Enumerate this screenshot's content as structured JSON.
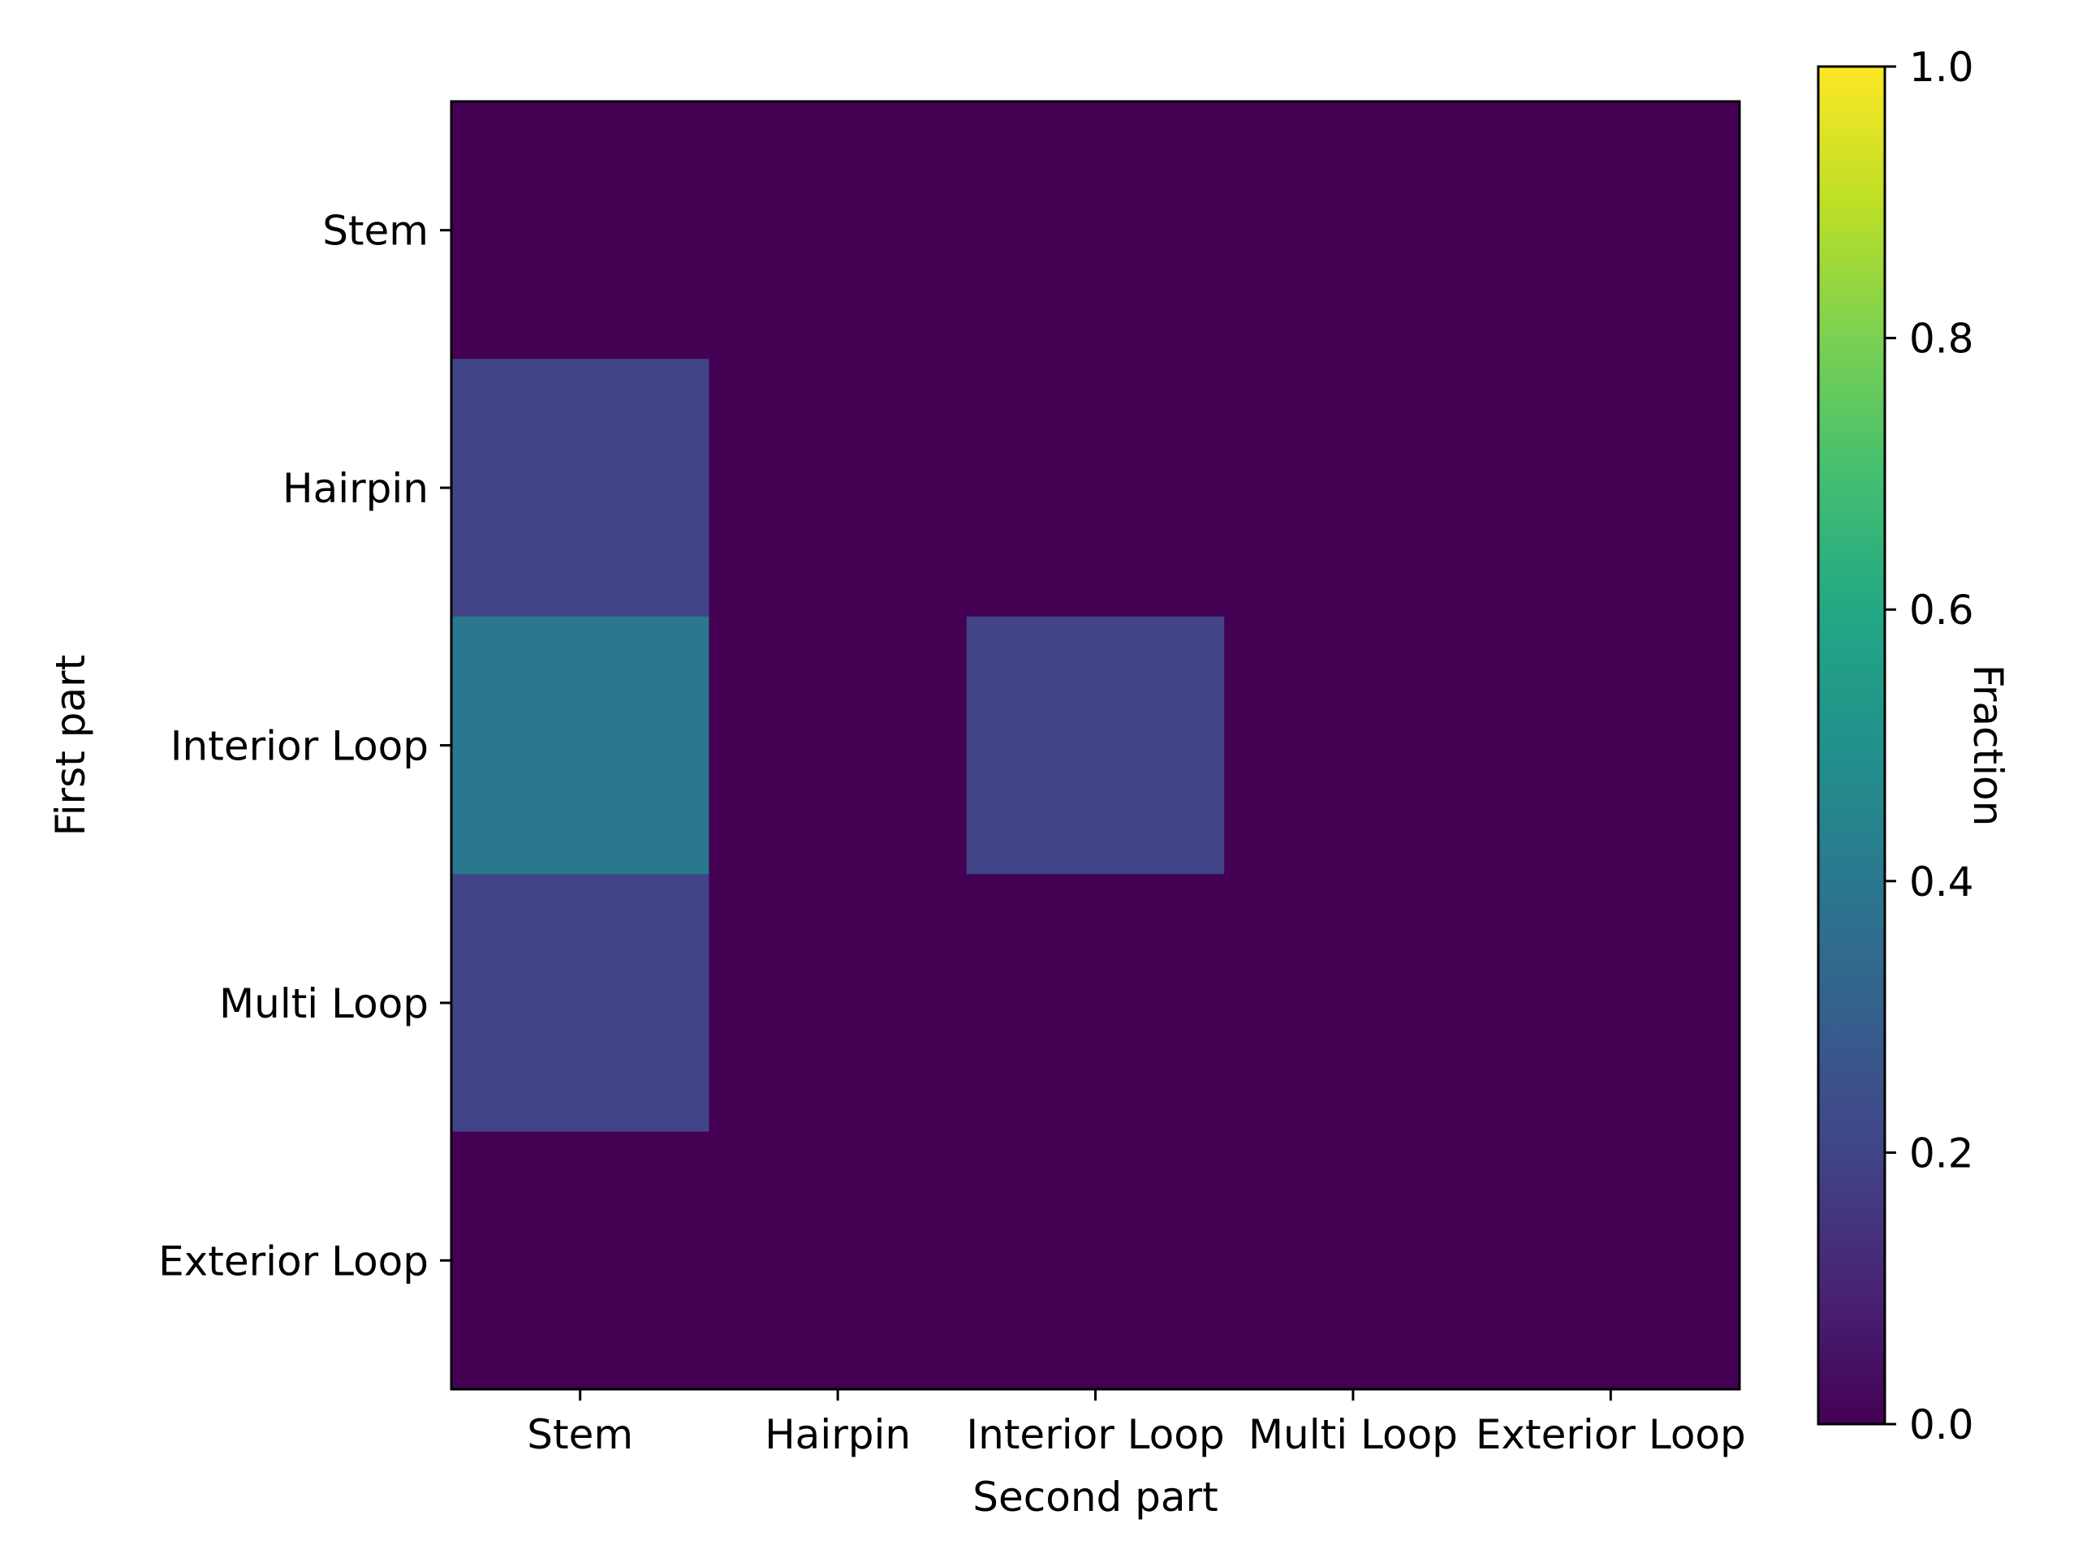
{
  "chart_data": {
    "type": "heatmap",
    "xlabel": "Second part",
    "ylabel": "First part",
    "x_categories": [
      "Stem",
      "Hairpin",
      "Interior Loop",
      "Multi Loop",
      "Exterior Loop"
    ],
    "y_categories": [
      "Stem",
      "Hairpin",
      "Interior Loop",
      "Multi Loop",
      "Exterior Loop"
    ],
    "values": [
      [
        0.0,
        0.0,
        0.0,
        0.0,
        0.0
      ],
      [
        0.2,
        0.0,
        0.0,
        0.0,
        0.0
      ],
      [
        0.4,
        0.0,
        0.2,
        0.0,
        0.0
      ],
      [
        0.2,
        0.0,
        0.0,
        0.0,
        0.0
      ],
      [
        0.0,
        0.0,
        0.0,
        0.0,
        0.0
      ]
    ],
    "colorbar": {
      "label": "Fraction",
      "range": [
        0.0,
        1.0
      ],
      "ticks": [
        "0.0",
        "0.2",
        "0.4",
        "0.6",
        "0.8",
        "1.0"
      ],
      "colormap": "viridis"
    }
  }
}
